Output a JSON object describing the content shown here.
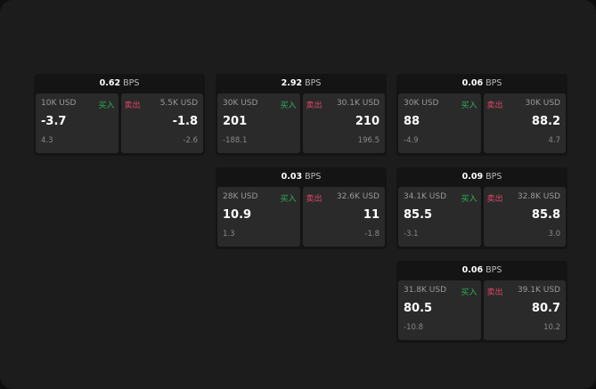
{
  "unit": "BPS",
  "cards": [
    {
      "bps": "0.62",
      "buy": {
        "label": "买入",
        "amount": "10K USD",
        "price": "-3.7",
        "delta": "4.3"
      },
      "sell": {
        "label": "卖出",
        "amount": "5.5K USD",
        "price": "-1.8",
        "delta": "-2.6"
      }
    },
    {
      "bps": "2.92",
      "buy": {
        "label": "买入",
        "amount": "30K USD",
        "price": "201",
        "delta": "-188.1"
      },
      "sell": {
        "label": "卖出",
        "amount": "30.1K USD",
        "price": "210",
        "delta": "196.5"
      }
    },
    {
      "bps": "0.06",
      "buy": {
        "label": "买入",
        "amount": "30K USD",
        "price": "88",
        "delta": "-4.9"
      },
      "sell": {
        "label": "卖出",
        "amount": "30K USD",
        "price": "88.2",
        "delta": "4.7"
      }
    },
    {
      "bps": "0.03",
      "buy": {
        "label": "买入",
        "amount": "28K USD",
        "price": "10.9",
        "delta": "1.3"
      },
      "sell": {
        "label": "卖出",
        "amount": "32.6K USD",
        "price": "11",
        "delta": "-1.8"
      }
    },
    {
      "bps": "0.09",
      "buy": {
        "label": "买入",
        "amount": "34.1K USD",
        "price": "85.5",
        "delta": "-3.1"
      },
      "sell": {
        "label": "卖出",
        "amount": "32.8K USD",
        "price": "85.8",
        "delta": "3.0"
      }
    },
    {
      "bps": "0.06",
      "buy": {
        "label": "买入",
        "amount": "31.8K USD",
        "price": "80.5",
        "delta": "-10.8"
      },
      "sell": {
        "label": "卖出",
        "amount": "39.1K USD",
        "price": "80.7",
        "delta": "10.2"
      }
    }
  ],
  "colors": {
    "buy": "#2fb15a",
    "sell": "#e0466a",
    "background": "#1c1c1c"
  }
}
